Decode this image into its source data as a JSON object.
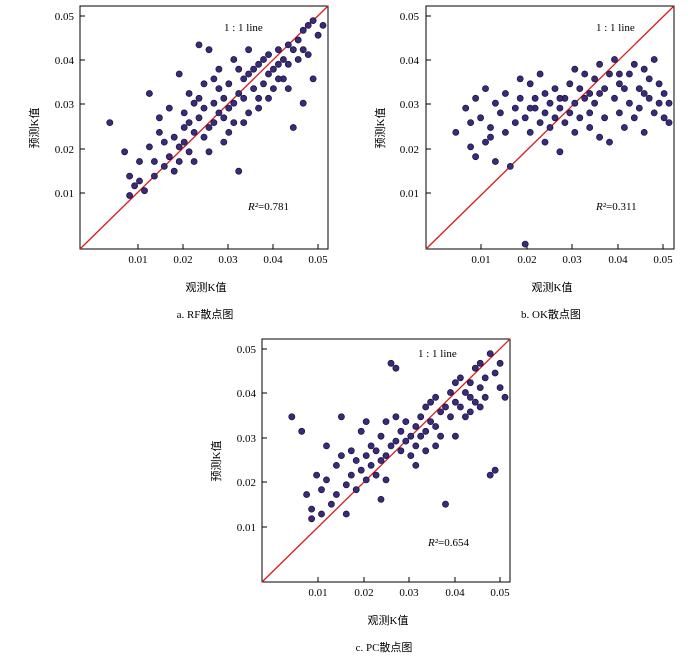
{
  "figure": {
    "colors": {
      "point_fill": "#3a2a7a",
      "point_stroke": "#0f0b2e",
      "line": "#d91c1c",
      "frame": "#000000"
    }
  },
  "chart_data": [
    {
      "type": "scatter",
      "caption": "a.  RF散点图",
      "xlabel": "观测K值",
      "ylabel": "预测K值",
      "xlim": [
        0,
        0.05
      ],
      "ylim": [
        0,
        0.05
      ],
      "xticks": [
        "0.01",
        "0.02",
        "0.03",
        "0.04",
        "0.05"
      ],
      "yticks": [
        "0.01",
        "0.02",
        "0.03",
        "0.04",
        "0.05"
      ],
      "line_label": "1 : 1 line",
      "r2_prefix": "R²",
      "r2_value": "=0.781",
      "points": [
        [
          0.006,
          0.026
        ],
        [
          0.009,
          0.02
        ],
        [
          0.01,
          0.015
        ],
        [
          0.01,
          0.011
        ],
        [
          0.011,
          0.013
        ],
        [
          0.012,
          0.014
        ],
        [
          0.012,
          0.018
        ],
        [
          0.013,
          0.012
        ],
        [
          0.014,
          0.032
        ],
        [
          0.014,
          0.021
        ],
        [
          0.015,
          0.015
        ],
        [
          0.016,
          0.024
        ],
        [
          0.017,
          0.022
        ],
        [
          0.018,
          0.019
        ],
        [
          0.019,
          0.016
        ],
        [
          0.02,
          0.021
        ],
        [
          0.02,
          0.018
        ],
        [
          0.021,
          0.025
        ],
        [
          0.021,
          0.022
        ],
        [
          0.022,
          0.026
        ],
        [
          0.022,
          0.02
        ],
        [
          0.023,
          0.03
        ],
        [
          0.023,
          0.024
        ],
        [
          0.024,
          0.042
        ],
        [
          0.024,
          0.027
        ],
        [
          0.025,
          0.023
        ],
        [
          0.025,
          0.029
        ],
        [
          0.026,
          0.041
        ],
        [
          0.026,
          0.025
        ],
        [
          0.027,
          0.03
        ],
        [
          0.027,
          0.026
        ],
        [
          0.028,
          0.028
        ],
        [
          0.028,
          0.033
        ],
        [
          0.029,
          0.027
        ],
        [
          0.029,
          0.031
        ],
        [
          0.03,
          0.029
        ],
        [
          0.03,
          0.034
        ],
        [
          0.031,
          0.03
        ],
        [
          0.031,
          0.026
        ],
        [
          0.032,
          0.032
        ],
        [
          0.032,
          0.016
        ],
        [
          0.033,
          0.035
        ],
        [
          0.033,
          0.031
        ],
        [
          0.034,
          0.036
        ],
        [
          0.034,
          0.028
        ],
        [
          0.035,
          0.037
        ],
        [
          0.035,
          0.033
        ],
        [
          0.036,
          0.038
        ],
        [
          0.036,
          0.031
        ],
        [
          0.037,
          0.039
        ],
        [
          0.037,
          0.034
        ],
        [
          0.038,
          0.036
        ],
        [
          0.038,
          0.04
        ],
        [
          0.039,
          0.037
        ],
        [
          0.039,
          0.033
        ],
        [
          0.04,
          0.041
        ],
        [
          0.04,
          0.038
        ],
        [
          0.041,
          0.039
        ],
        [
          0.041,
          0.035
        ],
        [
          0.042,
          0.042
        ],
        [
          0.042,
          0.038
        ],
        [
          0.043,
          0.041
        ],
        [
          0.043,
          0.025
        ],
        [
          0.044,
          0.043
        ],
        [
          0.044,
          0.039
        ],
        [
          0.045,
          0.045
        ],
        [
          0.045,
          0.041
        ],
        [
          0.046,
          0.046
        ],
        [
          0.046,
          0.04
        ],
        [
          0.047,
          0.047
        ],
        [
          0.048,
          0.044
        ],
        [
          0.049,
          0.046
        ],
        [
          0.045,
          0.03
        ],
        [
          0.047,
          0.035
        ],
        [
          0.02,
          0.036
        ],
        [
          0.018,
          0.029
        ],
        [
          0.016,
          0.027
        ],
        [
          0.022,
          0.032
        ],
        [
          0.027,
          0.035
        ],
        [
          0.031,
          0.039
        ],
        [
          0.034,
          0.041
        ],
        [
          0.023,
          0.018
        ],
        [
          0.026,
          0.02
        ],
        [
          0.029,
          0.022
        ],
        [
          0.03,
          0.024
        ],
        [
          0.024,
          0.031
        ],
        [
          0.021,
          0.028
        ],
        [
          0.033,
          0.026
        ],
        [
          0.036,
          0.029
        ],
        [
          0.038,
          0.031
        ],
        [
          0.028,
          0.037
        ],
        [
          0.015,
          0.018
        ],
        [
          0.017,
          0.017
        ],
        [
          0.019,
          0.023
        ],
        [
          0.025,
          0.034
        ],
        [
          0.032,
          0.037
        ],
        [
          0.04,
          0.035
        ],
        [
          0.042,
          0.033
        ]
      ]
    },
    {
      "type": "scatter",
      "caption": "b.  OK散点图",
      "xlabel": "观测K值",
      "ylabel": "预测K值",
      "xlim": [
        0,
        0.05
      ],
      "ylim": [
        0,
        0.05
      ],
      "xticks": [
        "0.01",
        "0.02",
        "0.03",
        "0.04",
        "0.05"
      ],
      "yticks": [
        "0.01",
        "0.02",
        "0.03",
        "0.04",
        "0.05"
      ],
      "line_label": "1 : 1 line",
      "r2_prefix": "R²",
      "r2_value": "=0.311",
      "points": [
        [
          0.006,
          0.024
        ],
        [
          0.008,
          0.029
        ],
        [
          0.009,
          0.026
        ],
        [
          0.01,
          0.031
        ],
        [
          0.01,
          0.019
        ],
        [
          0.011,
          0.027
        ],
        [
          0.012,
          0.033
        ],
        [
          0.012,
          0.022
        ],
        [
          0.013,
          0.025
        ],
        [
          0.014,
          0.03
        ],
        [
          0.014,
          0.018
        ],
        [
          0.015,
          0.028
        ],
        [
          0.016,
          0.032
        ],
        [
          0.016,
          0.024
        ],
        [
          0.017,
          0.017
        ],
        [
          0.018,
          0.029
        ],
        [
          0.018,
          0.026
        ],
        [
          0.019,
          0.031
        ],
        [
          0.02,
          0.001
        ],
        [
          0.02,
          0.027
        ],
        [
          0.021,
          0.034
        ],
        [
          0.021,
          0.024
        ],
        [
          0.022,
          0.029
        ],
        [
          0.022,
          0.031
        ],
        [
          0.023,
          0.026
        ],
        [
          0.023,
          0.036
        ],
        [
          0.024,
          0.028
        ],
        [
          0.024,
          0.032
        ],
        [
          0.025,
          0.025
        ],
        [
          0.025,
          0.03
        ],
        [
          0.026,
          0.033
        ],
        [
          0.026,
          0.027
        ],
        [
          0.027,
          0.029
        ],
        [
          0.027,
          0.02
        ],
        [
          0.028,
          0.031
        ],
        [
          0.028,
          0.026
        ],
        [
          0.029,
          0.034
        ],
        [
          0.029,
          0.028
        ],
        [
          0.03,
          0.03
        ],
        [
          0.03,
          0.024
        ],
        [
          0.031,
          0.033
        ],
        [
          0.031,
          0.027
        ],
        [
          0.032,
          0.031
        ],
        [
          0.032,
          0.036
        ],
        [
          0.033,
          0.028
        ],
        [
          0.033,
          0.025
        ],
        [
          0.034,
          0.035
        ],
        [
          0.034,
          0.03
        ],
        [
          0.035,
          0.032
        ],
        [
          0.035,
          0.038
        ],
        [
          0.036,
          0.027
        ],
        [
          0.036,
          0.033
        ],
        [
          0.037,
          0.036
        ],
        [
          0.037,
          0.022
        ],
        [
          0.038,
          0.031
        ],
        [
          0.038,
          0.039
        ],
        [
          0.039,
          0.034
        ],
        [
          0.039,
          0.028
        ],
        [
          0.04,
          0.033
        ],
        [
          0.04,
          0.025
        ],
        [
          0.041,
          0.036
        ],
        [
          0.041,
          0.03
        ],
        [
          0.042,
          0.038
        ],
        [
          0.042,
          0.027
        ],
        [
          0.043,
          0.033
        ],
        [
          0.043,
          0.029
        ],
        [
          0.044,
          0.037
        ],
        [
          0.044,
          0.024
        ],
        [
          0.045,
          0.031
        ],
        [
          0.045,
          0.035
        ],
        [
          0.046,
          0.028
        ],
        [
          0.046,
          0.039
        ],
        [
          0.047,
          0.03
        ],
        [
          0.047,
          0.034
        ],
        [
          0.048,
          0.027
        ],
        [
          0.048,
          0.032
        ],
        [
          0.049,
          0.026
        ],
        [
          0.049,
          0.03
        ],
        [
          0.009,
          0.021
        ],
        [
          0.013,
          0.023
        ],
        [
          0.019,
          0.035
        ],
        [
          0.024,
          0.022
        ],
        [
          0.03,
          0.037
        ],
        [
          0.035,
          0.023
        ],
        [
          0.039,
          0.036
        ],
        [
          0.044,
          0.032
        ],
        [
          0.021,
          0.029
        ],
        [
          0.027,
          0.031
        ],
        [
          0.033,
          0.032
        ]
      ]
    },
    {
      "type": "scatter",
      "caption": "c.  PC散点图",
      "xlabel": "观测K值",
      "ylabel": "预测K值",
      "xlim": [
        0,
        0.05
      ],
      "ylim": [
        0,
        0.05
      ],
      "xticks": [
        "0.01",
        "0.02",
        "0.03",
        "0.04",
        "0.05"
      ],
      "yticks": [
        "0.01",
        "0.02",
        "0.03",
        "0.04",
        "0.05"
      ],
      "line_label": "1 : 1 line",
      "r2_prefix": "R²",
      "r2_value": "=0.654",
      "points": [
        [
          0.006,
          0.034
        ],
        [
          0.008,
          0.031
        ],
        [
          0.009,
          0.018
        ],
        [
          0.01,
          0.015
        ],
        [
          0.01,
          0.013
        ],
        [
          0.011,
          0.022
        ],
        [
          0.012,
          0.019
        ],
        [
          0.012,
          0.014
        ],
        [
          0.013,
          0.028
        ],
        [
          0.014,
          0.016
        ],
        [
          0.015,
          0.024
        ],
        [
          0.015,
          0.018
        ],
        [
          0.016,
          0.034
        ],
        [
          0.017,
          0.02
        ],
        [
          0.017,
          0.014
        ],
        [
          0.018,
          0.022
        ],
        [
          0.019,
          0.019
        ],
        [
          0.019,
          0.025
        ],
        [
          0.02,
          0.023
        ],
        [
          0.02,
          0.031
        ],
        [
          0.021,
          0.021
        ],
        [
          0.021,
          0.026
        ],
        [
          0.022,
          0.024
        ],
        [
          0.022,
          0.028
        ],
        [
          0.023,
          0.022
        ],
        [
          0.023,
          0.027
        ],
        [
          0.024,
          0.025
        ],
        [
          0.024,
          0.03
        ],
        [
          0.025,
          0.026
        ],
        [
          0.025,
          0.033
        ],
        [
          0.026,
          0.045
        ],
        [
          0.026,
          0.028
        ],
        [
          0.027,
          0.044
        ],
        [
          0.027,
          0.029
        ],
        [
          0.028,
          0.027
        ],
        [
          0.028,
          0.031
        ],
        [
          0.029,
          0.029
        ],
        [
          0.029,
          0.033
        ],
        [
          0.03,
          0.03
        ],
        [
          0.03,
          0.026
        ],
        [
          0.031,
          0.032
        ],
        [
          0.031,
          0.028
        ],
        [
          0.032,
          0.034
        ],
        [
          0.032,
          0.03
        ],
        [
          0.033,
          0.036
        ],
        [
          0.033,
          0.031
        ],
        [
          0.034,
          0.033
        ],
        [
          0.034,
          0.037
        ],
        [
          0.035,
          0.032
        ],
        [
          0.035,
          0.038
        ],
        [
          0.036,
          0.035
        ],
        [
          0.036,
          0.03
        ],
        [
          0.037,
          0.016
        ],
        [
          0.037,
          0.036
        ],
        [
          0.038,
          0.039
        ],
        [
          0.038,
          0.034
        ],
        [
          0.039,
          0.037
        ],
        [
          0.039,
          0.041
        ],
        [
          0.04,
          0.036
        ],
        [
          0.04,
          0.042
        ],
        [
          0.041,
          0.039
        ],
        [
          0.041,
          0.034
        ],
        [
          0.042,
          0.041
        ],
        [
          0.042,
          0.038
        ],
        [
          0.043,
          0.044
        ],
        [
          0.043,
          0.037
        ],
        [
          0.044,
          0.04
        ],
        [
          0.044,
          0.045
        ],
        [
          0.045,
          0.042
        ],
        [
          0.045,
          0.038
        ],
        [
          0.046,
          0.047
        ],
        [
          0.046,
          0.022
        ],
        [
          0.047,
          0.023
        ],
        [
          0.047,
          0.043
        ],
        [
          0.048,
          0.04
        ],
        [
          0.048,
          0.045
        ],
        [
          0.049,
          0.038
        ],
        [
          0.024,
          0.017
        ],
        [
          0.021,
          0.033
        ],
        [
          0.018,
          0.027
        ],
        [
          0.031,
          0.024
        ],
        [
          0.027,
          0.034
        ],
        [
          0.035,
          0.028
        ],
        [
          0.039,
          0.03
        ],
        [
          0.033,
          0.027
        ],
        [
          0.025,
          0.021
        ],
        [
          0.042,
          0.035
        ],
        [
          0.044,
          0.036
        ],
        [
          0.013,
          0.021
        ],
        [
          0.016,
          0.026
        ]
      ]
    }
  ]
}
